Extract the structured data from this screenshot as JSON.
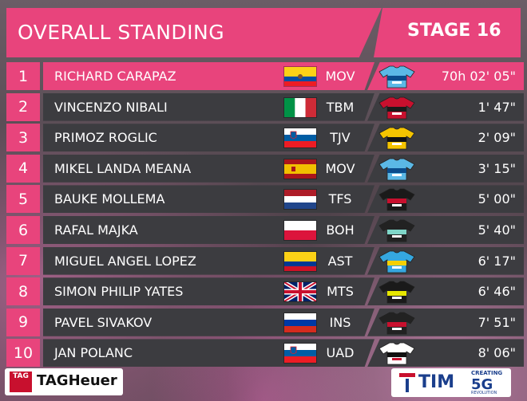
{
  "header": {
    "title": "OVERALL STANDING",
    "stage": "STAGE 16"
  },
  "rows": [
    {
      "rank": "1",
      "name": "RICHARD CARAPAZ",
      "team": "MOV",
      "time": "70h 02' 05\"",
      "flag": "ecuador",
      "jersey": "movistar"
    },
    {
      "rank": "2",
      "name": "VINCENZO NIBALI",
      "team": "TBM",
      "time": "1' 47\"",
      "flag": "italy",
      "jersey": "bahrain"
    },
    {
      "rank": "3",
      "name": "PRIMOZ ROGLIC",
      "team": "TJV",
      "time": "2' 09\"",
      "flag": "slovenia",
      "jersey": "jumbo"
    },
    {
      "rank": "4",
      "name": "MIKEL LANDA MEANA",
      "team": "MOV",
      "time": "3' 15\"",
      "flag": "spain",
      "jersey": "movistar"
    },
    {
      "rank": "5",
      "name": "BAUKE MOLLEMA",
      "team": "TFS",
      "time": "5' 00\"",
      "flag": "netherlands",
      "jersey": "trek"
    },
    {
      "rank": "6",
      "name": "RAFAL MAJKA",
      "team": "BOH",
      "time": "5' 40\"",
      "flag": "poland",
      "jersey": "bora"
    },
    {
      "rank": "7",
      "name": "MIGUEL ANGEL LOPEZ",
      "team": "AST",
      "time": "6' 17\"",
      "flag": "colombia",
      "jersey": "astana"
    },
    {
      "rank": "8",
      "name": "SIMON PHILIP YATES",
      "team": "MTS",
      "time": "6' 46\"",
      "flag": "uk",
      "jersey": "mitchelton"
    },
    {
      "rank": "9",
      "name": "PAVEL SIVAKOV",
      "team": "INS",
      "time": "7' 51\"",
      "flag": "russia",
      "jersey": "ineos"
    },
    {
      "rank": "10",
      "name": "JAN POLANC",
      "team": "UAD",
      "time": "8' 06\"",
      "flag": "slovenia",
      "jersey": "uae"
    }
  ],
  "sponsors": {
    "left_badge": "TAG",
    "left_name": "TAGHeuer",
    "right_name": "TIM",
    "right_top": "CREATING",
    "right_5g": "5G",
    "right_bottom": "REVOLUTION"
  },
  "colors": {
    "accent": "#e8447c",
    "bar": "#3c3c40",
    "text": "#ffffff"
  }
}
